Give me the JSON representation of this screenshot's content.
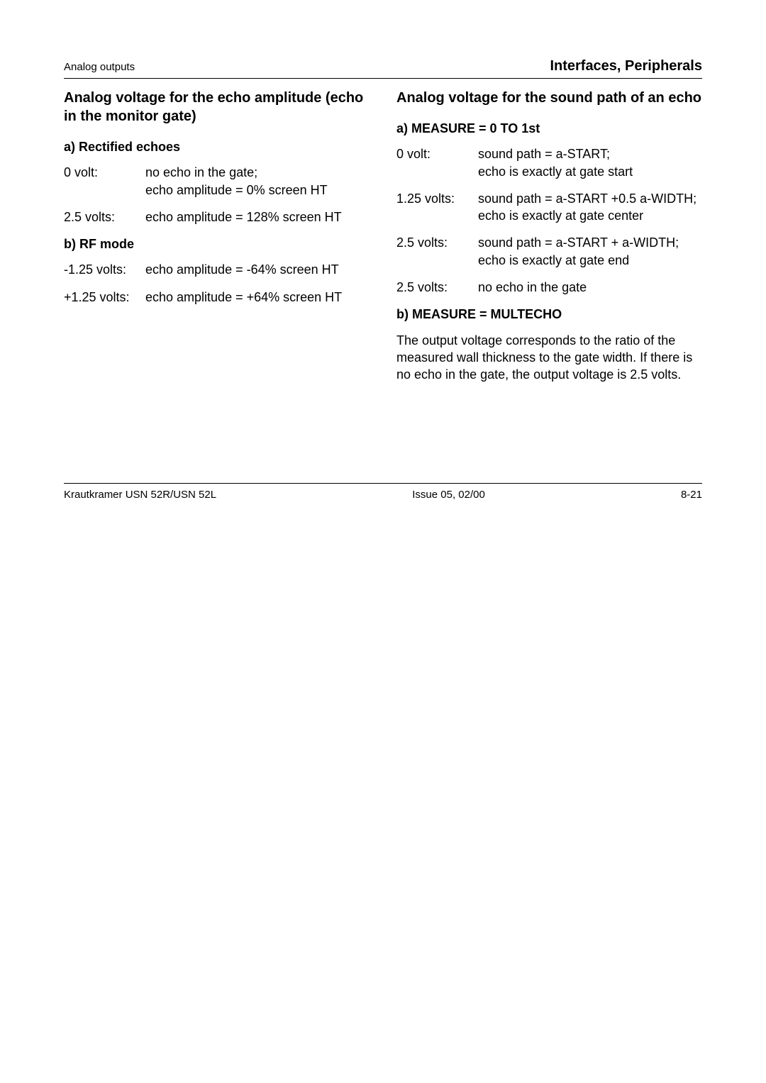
{
  "header": {
    "left": "Analog outputs",
    "right": "Interfaces, Peripherals"
  },
  "leftCol": {
    "title": "Analog voltage for the echo amplitude (echo in the monitor gate)",
    "secA": {
      "heading": "a) Rectified echoes",
      "rows": [
        {
          "label": "0 volt:",
          "line1": "no echo in the gate;",
          "line2": "echo amplitude = 0% screen HT"
        },
        {
          "label": "2.5 volts:",
          "line1": "echo amplitude = 128% screen HT",
          "line2": ""
        }
      ]
    },
    "secB": {
      "heading": "b) RF mode",
      "rows": [
        {
          "label": "-1.25 volts:",
          "line1": "echo amplitude = -64% screen HT",
          "line2": ""
        },
        {
          "label": "+1.25 volts:",
          "line1": "echo amplitude = +64% screen HT",
          "line2": ""
        }
      ]
    }
  },
  "rightCol": {
    "title": "Analog voltage for the sound path of an echo",
    "secA": {
      "heading": "a) MEASURE = 0 TO 1st",
      "rows": [
        {
          "label": "0 volt:",
          "line1": "sound path = a-START;",
          "line2": "echo is exactly at gate start"
        },
        {
          "label": "1.25 volts:",
          "line1": "sound path = a-START +0.5 a-WIDTH;",
          "line2": "echo is exactly at gate center"
        },
        {
          "label": "2.5 volts:",
          "line1": "sound path = a-START + a-WIDTH;",
          "line2": "echo is exactly at gate end"
        },
        {
          "label": "2.5 volts:",
          "line1": "no echo in the gate",
          "line2": ""
        }
      ]
    },
    "secB": {
      "heading": "b) MEASURE = MULTECHO",
      "para": "The output voltage corresponds to the ratio of the measured wall thickness to the gate width. If there is no echo in the gate, the output voltage is 2.5 volts."
    }
  },
  "footer": {
    "left": "Krautkramer USN 52R/USN 52L",
    "center": "Issue 05, 02/00",
    "right": "8-21"
  }
}
